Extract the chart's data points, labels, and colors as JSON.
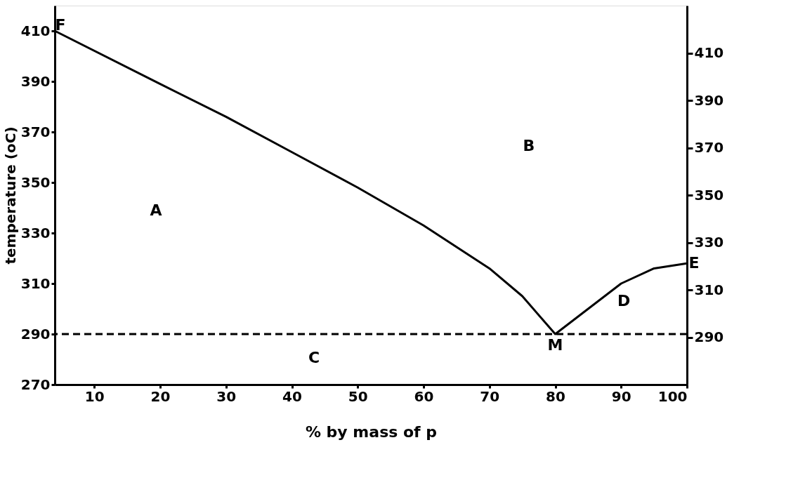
{
  "chart_data": {
    "type": "line",
    "xlabel": "% by mass of p",
    "ylabel": "temperature (oC)",
    "x": [
      4,
      20,
      30,
      40,
      50,
      60,
      70,
      75,
      80,
      85,
      90,
      95,
      100
    ],
    "series": [
      {
        "color": "#000000",
        "values": [
          410,
          389,
          376,
          362,
          348,
          333,
          316,
          305,
          290,
          300,
          310,
          316,
          318
        ]
      }
    ],
    "xlim": [
      4,
      100
    ],
    "xticks": [
      10,
      20,
      30,
      40,
      50,
      60,
      70,
      80,
      90,
      100
    ],
    "ylim": [
      270,
      420
    ],
    "yticks": [
      270,
      290,
      310,
      330,
      350,
      370,
      390,
      410
    ],
    "y2lim": [
      270,
      430
    ],
    "y2ticks": [
      290,
      310,
      330,
      350,
      370,
      390,
      410
    ],
    "ref_lines": [
      {
        "axis": "y",
        "value": 290,
        "line_style": "dashed",
        "color": "#000000"
      }
    ],
    "annotations": [
      {
        "text": "F",
        "x": 4,
        "y": 410
      },
      {
        "text": "E",
        "x": 100,
        "y": 318
      },
      {
        "text": "M",
        "x": 80,
        "y": 290
      },
      "A",
      "B",
      "C",
      "D"
    ],
    "grid": false,
    "marker": "none",
    "line_style": "solid"
  }
}
